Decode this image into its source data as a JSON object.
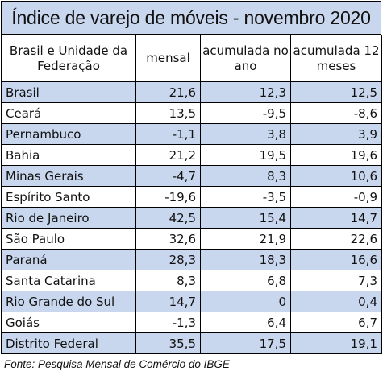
{
  "title": "Índice de varejo de móveis - novembro 2020",
  "headers": {
    "region": "Brasil e Unidade da Federação",
    "monthly": "mensal",
    "ytd": "acumulada no ano",
    "twelve_months": "acumulada 12 meses"
  },
  "rows": [
    {
      "name": "Brasil",
      "mensal": "21,6",
      "ano": "12,3",
      "doze": "12,5"
    },
    {
      "name": "Ceará",
      "mensal": "13,5",
      "ano": "-9,5",
      "doze": "-8,6"
    },
    {
      "name": "Pernambuco",
      "mensal": "-1,1",
      "ano": "3,8",
      "doze": "3,9"
    },
    {
      "name": "Bahia",
      "mensal": "21,2",
      "ano": "19,5",
      "doze": "19,6"
    },
    {
      "name": "Minas Gerais",
      "mensal": "-4,7",
      "ano": "8,3",
      "doze": "10,6"
    },
    {
      "name": "Espírito Santo",
      "mensal": "-19,6",
      "ano": "-3,5",
      "doze": "-0,9"
    },
    {
      "name": "Rio de Janeiro",
      "mensal": "42,5",
      "ano": "15,4",
      "doze": "14,7"
    },
    {
      "name": "São Paulo",
      "mensal": "32,6",
      "ano": "21,9",
      "doze": "22,6"
    },
    {
      "name": "Paraná",
      "mensal": "28,3",
      "ano": "18,3",
      "doze": "16,6"
    },
    {
      "name": "Santa Catarina",
      "mensal": "8,3",
      "ano": "6,8",
      "doze": "7,3"
    },
    {
      "name": "Rio Grande do Sul",
      "mensal": "14,7",
      "ano": "0",
      "doze": "0,4"
    },
    {
      "name": "Goiás",
      "mensal": "-1,3",
      "ano": "6,4",
      "doze": "6,7"
    },
    {
      "name": "Distrito Federal",
      "mensal": "35,5",
      "ano": "17,5",
      "doze": "19,1"
    }
  ],
  "footer": "Fonte: Pesquisa Mensal de Comércio do IBGE",
  "colors": {
    "shade": "#c9d7ee",
    "border": "#000000"
  }
}
